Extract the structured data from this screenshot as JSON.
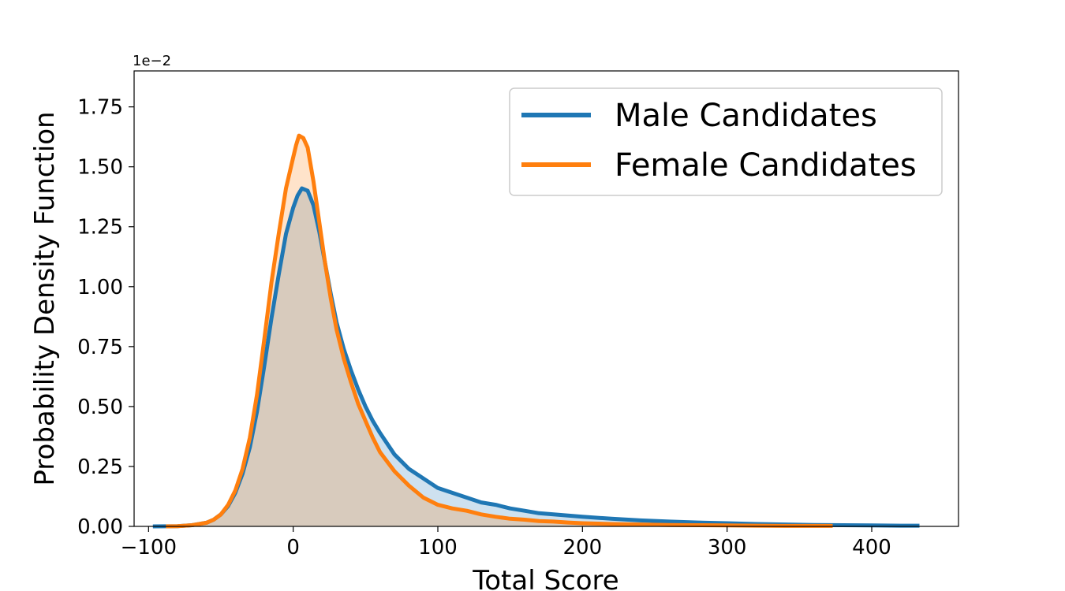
{
  "chart_data": {
    "type": "area",
    "title": "",
    "xlabel": "Total Score",
    "ylabel": "Probability Density Function",
    "y_scale_label": "1e−2",
    "xlim": [
      -110,
      460
    ],
    "ylim": [
      0,
      1.9
    ],
    "x_ticks": [
      -100,
      0,
      100,
      200,
      300,
      400
    ],
    "x_tick_labels": [
      "−100",
      "0",
      "100",
      "200",
      "300",
      "400"
    ],
    "y_ticks": [
      0,
      0.25,
      0.5,
      0.75,
      1.0,
      1.25,
      1.5,
      1.75
    ],
    "y_tick_labels": [
      "0.00",
      "0.25",
      "0.50",
      "0.75",
      "1.00",
      "1.25",
      "1.50",
      "1.75"
    ],
    "grid": false,
    "legend_position": "top-right",
    "series": [
      {
        "name": "Male Candidates",
        "color": "#1f77b4",
        "fill": "rgba(31,119,180,0.22)",
        "x": [
          -97,
          -80,
          -70,
          -60,
          -55,
          -50,
          -45,
          -40,
          -35,
          -30,
          -25,
          -20,
          -15,
          -10,
          -5,
          0,
          3,
          6,
          10,
          14,
          18,
          22,
          26,
          30,
          35,
          40,
          45,
          50,
          55,
          60,
          70,
          80,
          90,
          100,
          110,
          120,
          130,
          140,
          150,
          160,
          170,
          180,
          190,
          200,
          220,
          240,
          260,
          280,
          300,
          320,
          340,
          360,
          380,
          400,
          420,
          433
        ],
        "y": [
          0,
          0.001,
          0.005,
          0.015,
          0.028,
          0.05,
          0.085,
          0.14,
          0.22,
          0.33,
          0.48,
          0.67,
          0.87,
          1.05,
          1.22,
          1.33,
          1.38,
          1.41,
          1.4,
          1.34,
          1.23,
          1.1,
          0.97,
          0.85,
          0.74,
          0.65,
          0.57,
          0.5,
          0.44,
          0.39,
          0.3,
          0.24,
          0.2,
          0.16,
          0.14,
          0.12,
          0.1,
          0.09,
          0.075,
          0.065,
          0.055,
          0.05,
          0.045,
          0.04,
          0.032,
          0.025,
          0.02,
          0.016,
          0.013,
          0.01,
          0.008,
          0.006,
          0.005,
          0.004,
          0.003,
          0.003
        ]
      },
      {
        "name": "Female Candidates",
        "color": "#ff7f0e",
        "fill": "rgba(255,127,14,0.22)",
        "x": [
          -88,
          -80,
          -70,
          -60,
          -55,
          -50,
          -45,
          -40,
          -35,
          -30,
          -25,
          -20,
          -15,
          -10,
          -5,
          0,
          2,
          4,
          7,
          10,
          14,
          18,
          22,
          26,
          30,
          35,
          40,
          45,
          50,
          55,
          60,
          70,
          80,
          90,
          100,
          110,
          120,
          130,
          140,
          150,
          160,
          170,
          180,
          190,
          200,
          220,
          240,
          260,
          280,
          300,
          320,
          340,
          360,
          373
        ],
        "y": [
          0,
          0.001,
          0.005,
          0.015,
          0.028,
          0.05,
          0.09,
          0.15,
          0.24,
          0.37,
          0.55,
          0.78,
          1.02,
          1.22,
          1.41,
          1.54,
          1.59,
          1.63,
          1.62,
          1.58,
          1.44,
          1.27,
          1.1,
          0.95,
          0.82,
          0.7,
          0.6,
          0.51,
          0.44,
          0.37,
          0.31,
          0.23,
          0.17,
          0.12,
          0.09,
          0.075,
          0.065,
          0.05,
          0.04,
          0.032,
          0.028,
          0.022,
          0.02,
          0.016,
          0.013,
          0.01,
          0.008,
          0.006,
          0.005,
          0.004,
          0.003,
          0.002,
          0.002,
          0.002
        ]
      }
    ]
  }
}
